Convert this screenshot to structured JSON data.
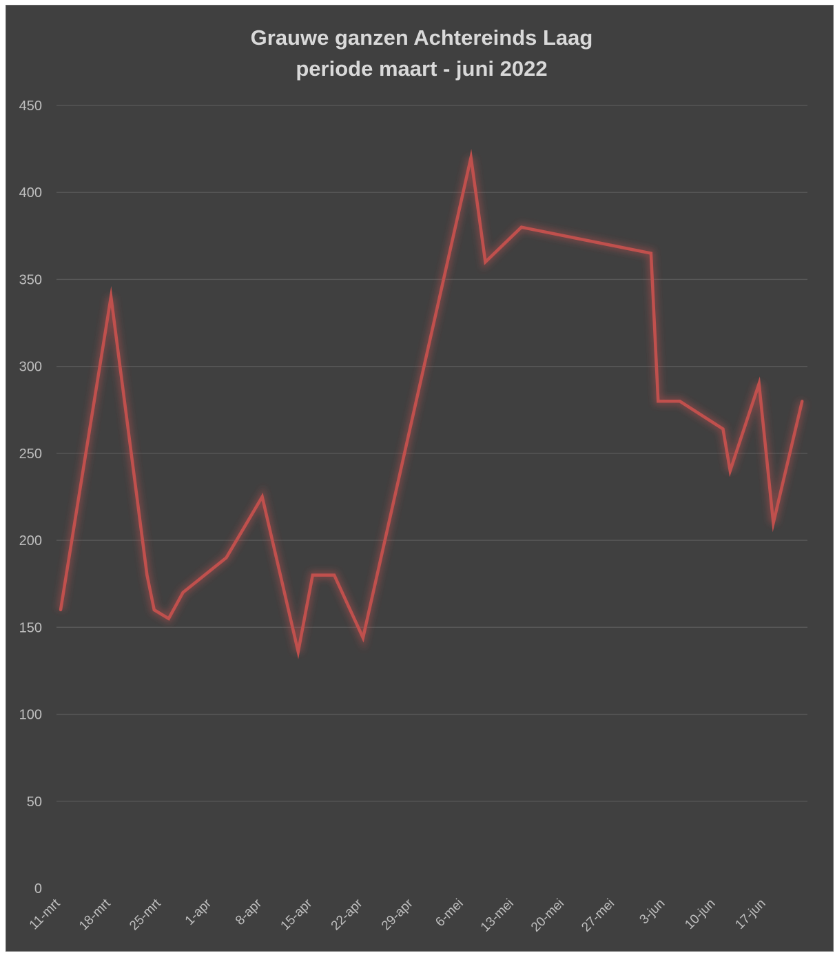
{
  "chart_data": {
    "type": "line",
    "title_lines": [
      "Grauwe ganzen Achtereinds Laag",
      "periode maart - juni  2022"
    ],
    "xlabel": "",
    "ylabel": "",
    "ylim": [
      0,
      450
    ],
    "yticks": [
      0,
      50,
      100,
      150,
      200,
      250,
      300,
      350,
      400,
      450
    ],
    "grid": true,
    "legend": "none",
    "x_tick_labels": [
      "11-mrt",
      "18-mrt",
      "25-mrt",
      "1-apr",
      "8-apr",
      "15-apr",
      "22-apr",
      "29-apr",
      "6-mei",
      "13-mei",
      "20-mei",
      "27-mei",
      "3-jun",
      "10-jun",
      "17-jun"
    ],
    "x_range": [
      "2022-03-11",
      "2022-06-24"
    ],
    "line_color": "#c0504d",
    "series": [
      {
        "points": [
          {
            "x": "2022-03-11",
            "y": 160
          },
          {
            "x": "2022-03-18",
            "y": 340
          },
          {
            "x": "2022-03-23",
            "y": 180
          },
          {
            "x": "2022-03-24",
            "y": 160
          },
          {
            "x": "2022-03-26",
            "y": 155
          },
          {
            "x": "2022-03-28",
            "y": 170
          },
          {
            "x": "2022-04-03",
            "y": 190
          },
          {
            "x": "2022-04-08",
            "y": 225
          },
          {
            "x": "2022-04-13",
            "y": 136
          },
          {
            "x": "2022-04-15",
            "y": 180
          },
          {
            "x": "2022-04-18",
            "y": 180
          },
          {
            "x": "2022-04-22",
            "y": 144
          },
          {
            "x": "2022-05-07",
            "y": 420
          },
          {
            "x": "2022-05-09",
            "y": 360
          },
          {
            "x": "2022-05-14",
            "y": 380
          },
          {
            "x": "2022-06-01",
            "y": 365
          },
          {
            "x": "2022-06-02",
            "y": 280
          },
          {
            "x": "2022-06-05",
            "y": 280
          },
          {
            "x": "2022-06-11",
            "y": 264
          },
          {
            "x": "2022-06-12",
            "y": 240
          },
          {
            "x": "2022-06-16",
            "y": 290
          },
          {
            "x": "2022-06-18",
            "y": 210
          },
          {
            "x": "2022-06-22",
            "y": 280
          }
        ]
      }
    ]
  }
}
